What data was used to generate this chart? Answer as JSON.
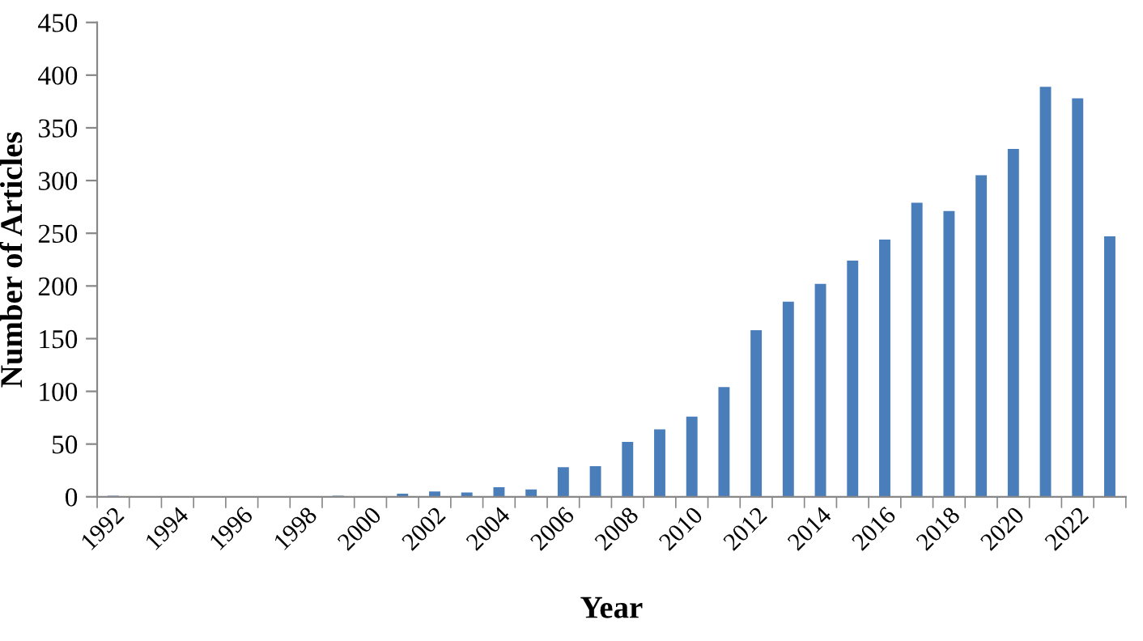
{
  "chart_data": {
    "type": "bar",
    "xlabel": "Year",
    "ylabel": "Number of Articles",
    "categories": [
      "1992",
      null,
      "1994",
      null,
      "1996",
      null,
      "1998",
      null,
      "2000",
      null,
      "2002",
      null,
      "2004",
      null,
      "2006",
      null,
      "2008",
      null,
      "2010",
      null,
      "2012",
      null,
      "2014",
      null,
      "2016",
      null,
      "2018",
      null,
      "2020",
      null,
      "2022",
      null
    ],
    "values": [
      1,
      0,
      0,
      0,
      0,
      0,
      0,
      1,
      0,
      3,
      5,
      4,
      9,
      7,
      28,
      29,
      52,
      64,
      76,
      104,
      158,
      185,
      202,
      224,
      244,
      279,
      271,
      305,
      330,
      389,
      378,
      247
    ],
    "color": "#4a7ebb",
    "ylim": [
      0,
      450
    ],
    "yticks": [
      0,
      50,
      100,
      150,
      200,
      250,
      300,
      350,
      400,
      450
    ],
    "grid": false
  }
}
